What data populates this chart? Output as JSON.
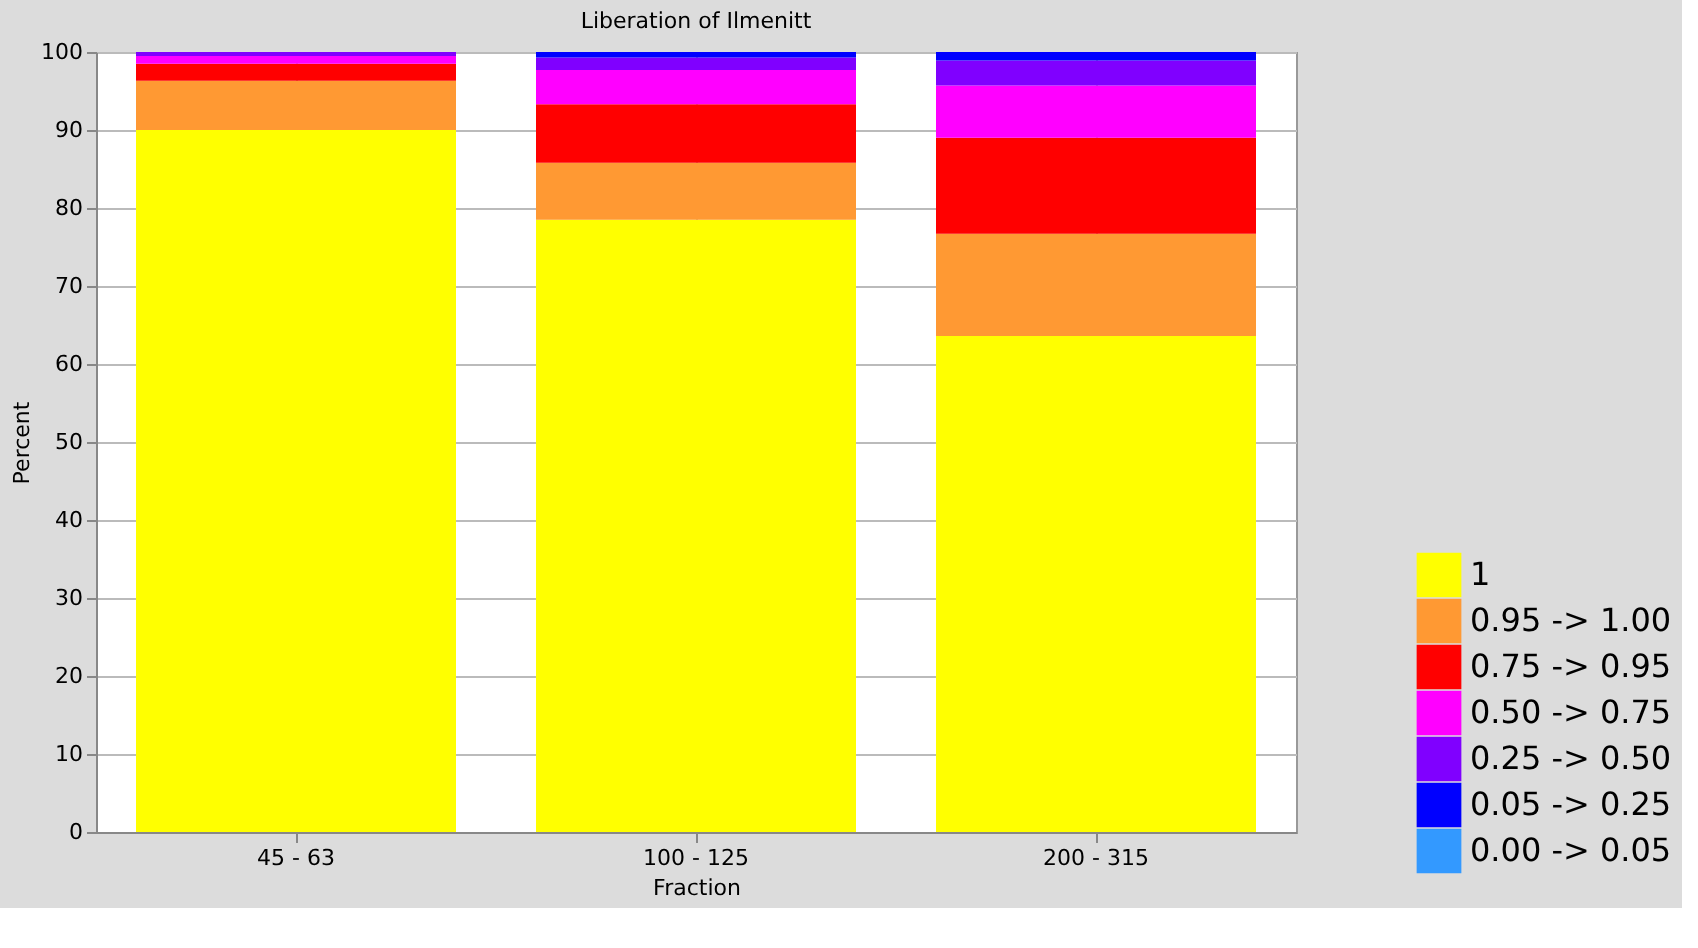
{
  "chart_data": {
    "type": "bar",
    "title": "Liberation of Ilmenitt",
    "xlabel": "Fraction",
    "ylabel": "Percent",
    "categories": [
      "45 - 63",
      "100 - 125",
      "200 - 315"
    ],
    "stacked": true,
    "series": [
      {
        "name": "1",
        "color": "#ffff00",
        "values": [
          90.0,
          78.5,
          63.6
        ]
      },
      {
        "name": "0.95 -> 1.00",
        "color": "#ff9933",
        "values": [
          6.3,
          7.3,
          13.1
        ]
      },
      {
        "name": "0.75 -> 0.95",
        "color": "#ff0000",
        "values": [
          2.2,
          7.5,
          12.3
        ]
      },
      {
        "name": "0.50 -> 0.75",
        "color": "#ff00ff",
        "values": [
          1.0,
          4.4,
          6.7
        ]
      },
      {
        "name": "0.25 -> 0.50",
        "color": "#8000ff",
        "values": [
          0.5,
          1.6,
          3.2
        ]
      },
      {
        "name": "0.05 -> 0.25",
        "color": "#0000ff",
        "values": [
          0,
          0.7,
          1.1
        ]
      },
      {
        "name": "0.00 -> 0.05",
        "color": "#3399ff",
        "values": [
          0,
          0,
          0
        ]
      }
    ],
    "ylim": [
      0,
      100
    ],
    "yticks": [
      0,
      10,
      20,
      30,
      40,
      50,
      60,
      70,
      80,
      90,
      100
    ],
    "grid": true,
    "legend": "bottom right"
  }
}
